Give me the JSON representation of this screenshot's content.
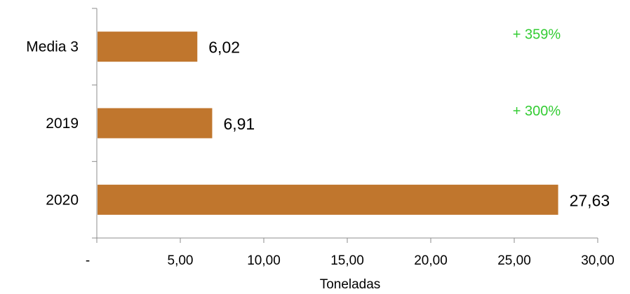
{
  "chart_data": {
    "type": "bar",
    "orientation": "horizontal",
    "categories": [
      "Media 3",
      "2019",
      "2020"
    ],
    "values": [
      6.02,
      6.91,
      27.63
    ],
    "data_labels": [
      "6,02",
      "6,91",
      "27,63"
    ],
    "bar_color": "#C0762D",
    "xlabel": "Toneladas",
    "ylabel": "",
    "xlim": [
      0,
      30
    ],
    "x_ticks": [
      0,
      5,
      10,
      15,
      20,
      25,
      30
    ],
    "x_tick_labels": [
      "-",
      "5,00",
      "10,00",
      "15,00",
      "20,00",
      "25,00",
      "30,00"
    ],
    "annotations": [
      {
        "text": "+ 359%",
        "category": "Media 3",
        "color": "#33CC33"
      },
      {
        "text": "+ 300%",
        "category": "2019",
        "color": "#33CC33"
      }
    ],
    "grid": false,
    "legend": "none"
  }
}
